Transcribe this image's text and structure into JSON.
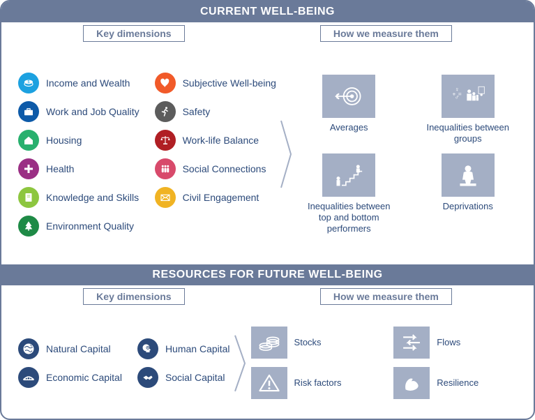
{
  "colors": {
    "banner_bg": "#6a7a99",
    "tile_bg": "#a4afc5",
    "text": "#2c4a7a"
  },
  "section1": {
    "title": "CURRENT WELL-BEING",
    "tab_left": "Key dimensions",
    "tab_right": "How we measure them",
    "dimensions_col1": [
      {
        "label": "Income and Wealth",
        "color": "#1ca1e0",
        "icon": "money"
      },
      {
        "label": "Work and Job Quality",
        "color": "#0d5aa8",
        "icon": "briefcase"
      },
      {
        "label": "Housing",
        "color": "#28b06e",
        "icon": "house"
      },
      {
        "label": "Health",
        "color": "#9a2f84",
        "icon": "cross"
      },
      {
        "label": "Knowledge and Skills",
        "color": "#8dc63f",
        "icon": "book"
      },
      {
        "label": "Environment Quality",
        "color": "#1e8a46",
        "icon": "tree"
      }
    ],
    "dimensions_col2": [
      {
        "label": "Subjective Well-being",
        "color": "#f15a29",
        "icon": "heart"
      },
      {
        "label": "Safety",
        "color": "#5c5c5c",
        "icon": "runner"
      },
      {
        "label": "Work-life Balance",
        "color": "#b01f24",
        "icon": "scales"
      },
      {
        "label": "Social Connections",
        "color": "#d84a6b",
        "icon": "people"
      },
      {
        "label": "Civil Engagement",
        "color": "#f0b323",
        "icon": "envelope"
      }
    ],
    "measures": [
      {
        "label": "Averages",
        "icon": "target"
      },
      {
        "label": "Inequalities between groups",
        "icon": "groups"
      },
      {
        "label": "Inequalities between top and bottom performers",
        "icon": "stairs"
      },
      {
        "label": "Deprivations",
        "icon": "sitting"
      }
    ]
  },
  "section2": {
    "title": "RESOURCES FOR FUTURE WELL-BEING",
    "tab_left": "Key dimensions",
    "tab_right": "How we measure them",
    "dimensions_col1": [
      {
        "label": "Natural Capital",
        "color": "#2c4a7a",
        "icon": "globe"
      },
      {
        "label": "Economic Capital",
        "color": "#2c4a7a",
        "icon": "bridge"
      }
    ],
    "dimensions_col2": [
      {
        "label": "Human Capital",
        "color": "#2c4a7a",
        "icon": "head"
      },
      {
        "label": "Social Capital",
        "color": "#2c4a7a",
        "icon": "handshake"
      }
    ],
    "measures": [
      {
        "label": "Stocks",
        "icon": "coins"
      },
      {
        "label": "Flows",
        "icon": "arrows"
      },
      {
        "label": "Risk factors",
        "icon": "warning"
      },
      {
        "label": "Resilience",
        "icon": "flex"
      }
    ]
  }
}
